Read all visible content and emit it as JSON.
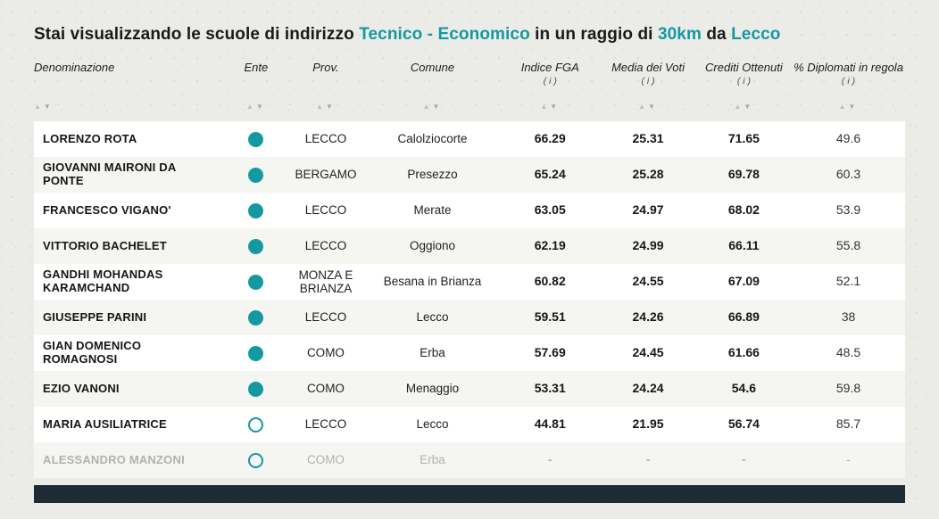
{
  "title": {
    "part1": "Stai visualizzando le scuole di indirizzo ",
    "indirizzo": "Tecnico - Economico",
    "part2": " in un raggio di ",
    "radius": "30km",
    "part3": " da ",
    "city": "Lecco"
  },
  "colors": {
    "accent": "#1599a1",
    "footer_bar": "#1e2a36",
    "row_alt": "#f5f5f2"
  },
  "table": {
    "info_label": "( i )",
    "sort_asc_glyph": "▲",
    "sort_desc_glyph": "▼",
    "columns": [
      {
        "label": "Denominazione",
        "info": false
      },
      {
        "label": "Ente",
        "info": false
      },
      {
        "label": "Prov.",
        "info": false
      },
      {
        "label": "Comune",
        "info": false
      },
      {
        "label": "Indice FGA",
        "info": true
      },
      {
        "label": "Media dei Voti",
        "info": true
      },
      {
        "label": "Crediti Ottenuti",
        "info": true
      },
      {
        "label": "% Diplomati in regola",
        "info": true
      }
    ],
    "rows": [
      {
        "name": "LORENZO ROTA",
        "ente": "filled",
        "prov": "LECCO",
        "comune": "Calolziocorte",
        "indice_fga": "66.29",
        "media_voti": "25.31",
        "crediti_ottenuti": "71.65",
        "diplomati_regola": "49.6",
        "disabled": false
      },
      {
        "name": "GIOVANNI MAIRONI DA PONTE",
        "ente": "filled",
        "prov": "BERGAMO",
        "comune": "Presezzo",
        "indice_fga": "65.24",
        "media_voti": "25.28",
        "crediti_ottenuti": "69.78",
        "diplomati_regola": "60.3",
        "disabled": false
      },
      {
        "name": "FRANCESCO VIGANO'",
        "ente": "filled",
        "prov": "LECCO",
        "comune": "Merate",
        "indice_fga": "63.05",
        "media_voti": "24.97",
        "crediti_ottenuti": "68.02",
        "diplomati_regola": "53.9",
        "disabled": false
      },
      {
        "name": "VITTORIO BACHELET",
        "ente": "filled",
        "prov": "LECCO",
        "comune": "Oggiono",
        "indice_fga": "62.19",
        "media_voti": "24.99",
        "crediti_ottenuti": "66.11",
        "diplomati_regola": "55.8",
        "disabled": false
      },
      {
        "name": "GANDHI MOHANDAS KARAMCHAND",
        "ente": "filled",
        "prov": "MONZA E BRIANZA",
        "comune": "Besana in Brianza",
        "indice_fga": "60.82",
        "media_voti": "24.55",
        "crediti_ottenuti": "67.09",
        "diplomati_regola": "52.1",
        "disabled": false
      },
      {
        "name": "GIUSEPPE PARINI",
        "ente": "filled",
        "prov": "LECCO",
        "comune": "Lecco",
        "indice_fga": "59.51",
        "media_voti": "24.26",
        "crediti_ottenuti": "66.89",
        "diplomati_regola": "38",
        "disabled": false
      },
      {
        "name": "GIAN DOMENICO ROMAGNOSI",
        "ente": "filled",
        "prov": "COMO",
        "comune": "Erba",
        "indice_fga": "57.69",
        "media_voti": "24.45",
        "crediti_ottenuti": "61.66",
        "diplomati_regola": "48.5",
        "disabled": false
      },
      {
        "name": "EZIO VANONI",
        "ente": "filled",
        "prov": "COMO",
        "comune": "Menaggio",
        "indice_fga": "53.31",
        "media_voti": "24.24",
        "crediti_ottenuti": "54.6",
        "diplomati_regola": "59.8",
        "disabled": false
      },
      {
        "name": "MARIA AUSILIATRICE",
        "ente": "hollow",
        "prov": "LECCO",
        "comune": "Lecco",
        "indice_fga": "44.81",
        "media_voti": "21.95",
        "crediti_ottenuti": "56.74",
        "diplomati_regola": "85.7",
        "disabled": false
      },
      {
        "name": "ALESSANDRO MANZONI",
        "ente": "hollow",
        "prov": "COMO",
        "comune": "Erba",
        "indice_fga": "-",
        "media_voti": "-",
        "crediti_ottenuti": "-",
        "diplomati_regola": "-",
        "disabled": true
      }
    ]
  }
}
